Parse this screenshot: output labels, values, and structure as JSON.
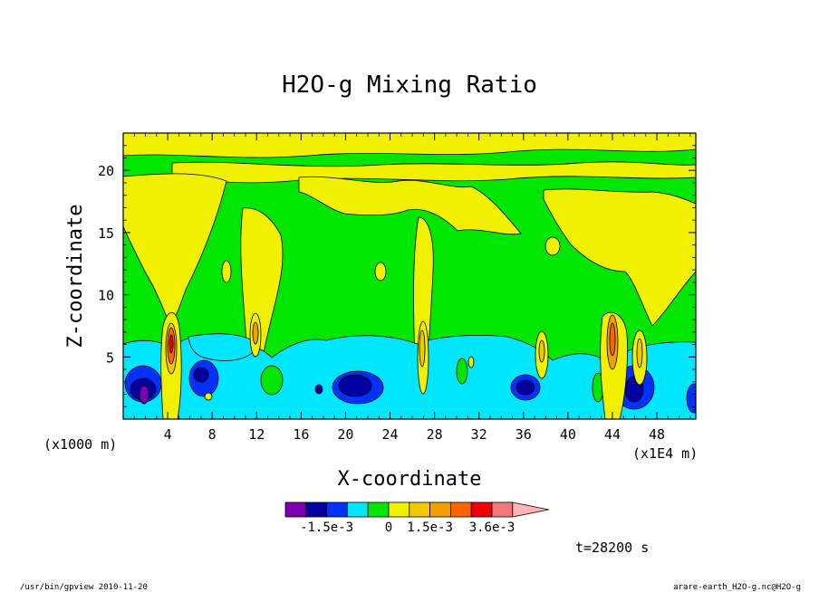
{
  "chart_data": {
    "type": "heatmap",
    "title": "H2O-g Mixing Ratio",
    "xlabel": "X-coordinate",
    "ylabel": "Z-coordinate",
    "x_unit_left": "(x1000 m)",
    "x_unit_right": "(x1E4 m)",
    "x_range": [
      0,
      51.5
    ],
    "y_range": [
      0,
      23
    ],
    "x_ticks": [
      4,
      8,
      12,
      16,
      20,
      24,
      28,
      32,
      36,
      40,
      44,
      48
    ],
    "y_ticks": [
      5,
      10,
      15,
      20
    ],
    "time_label": "t=28200 s",
    "colorbar": {
      "colors": [
        "#7b00b4",
        "#0000a0",
        "#0032ff",
        "#00e6ff",
        "#00e600",
        "#f0f000",
        "#f0c800",
        "#f0a000",
        "#ff6400",
        "#f00000",
        "#f07878",
        "#ffb4b4"
      ],
      "tick_labels": [
        "-1.5e-3",
        "0",
        "1.5e-3",
        "3.6e-3"
      ]
    },
    "bands": {
      "lower_cyan_base": 5.8,
      "green_mid": [
        6,
        14
      ],
      "yellow_top_layer": [
        18,
        23
      ]
    }
  },
  "footer": {
    "left": "/usr/bin/gpview  2010-11-20",
    "right": "arare-earth_H2O-g.nc@H2O-g"
  }
}
